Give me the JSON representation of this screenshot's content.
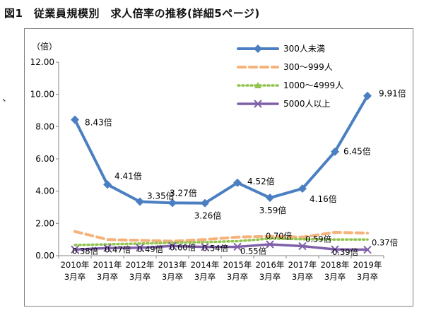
{
  "title": "図1　従業員規模別　求人倍率の推移(詳細5ページ)",
  "stray_mark": "、",
  "chart_data": {
    "type": "line",
    "title": "図1　従業員規模別　求人倍率の推移(詳細5ページ)",
    "ylabel": "（倍）",
    "xlabel": "",
    "ylim": [
      0,
      12
    ],
    "yticks": [
      "0.00",
      "2.00",
      "4.00",
      "6.00",
      "8.00",
      "10.00",
      "12.00"
    ],
    "grid": false,
    "legend_position": "top-right",
    "categories": [
      [
        "2010年",
        "3月卒"
      ],
      [
        "2011年",
        "3月卒"
      ],
      [
        "2012年",
        "3月卒"
      ],
      [
        "2013年",
        "3月卒"
      ],
      [
        "2014年",
        "3月卒"
      ],
      [
        "2015年",
        "3月卒"
      ],
      [
        "2016年",
        "3月卒"
      ],
      [
        "2017年",
        "3月卒"
      ],
      [
        "2018年",
        "3月卒"
      ],
      [
        "2019年",
        "3月卒"
      ]
    ],
    "series": [
      {
        "name": "300人未満",
        "color": "#4a7fc1",
        "style": "solid",
        "marker": "diamond",
        "values": [
          8.43,
          4.41,
          3.35,
          3.27,
          3.26,
          4.52,
          3.59,
          4.16,
          6.45,
          9.91
        ],
        "labels": [
          "8.43倍",
          "4.41倍",
          "3.35倍",
          "3.27倍",
          "3.26倍",
          "4.52倍",
          "3.59倍",
          "4.16倍",
          "6.45倍",
          "9.91倍"
        ]
      },
      {
        "name": "300～999人",
        "color": "#f5b27a",
        "style": "dash",
        "marker": "square",
        "values": [
          1.5,
          1.0,
          0.95,
          0.9,
          1.0,
          1.15,
          1.2,
          1.15,
          1.45,
          1.4
        ],
        "labels": []
      },
      {
        "name": "1000～4999人",
        "color": "#92c44f",
        "style": "dot",
        "marker": "triangle",
        "values": [
          0.66,
          0.7,
          0.75,
          0.8,
          0.84,
          0.9,
          1.06,
          1.02,
          1.0,
          1.0
        ],
        "labels": []
      },
      {
        "name": "5000人以上",
        "color": "#7f60a8",
        "style": "solid",
        "marker": "x",
        "values": [
          0.38,
          0.47,
          0.49,
          0.6,
          0.54,
          0.55,
          0.7,
          0.59,
          0.39,
          0.37
        ],
        "labels": [
          "0.38倍",
          "0.47倍",
          "0.49倍",
          "0.60倍",
          "0.54倍",
          "0.55倍",
          "0.70倍",
          "0.59倍",
          "0.39倍",
          "0.37倍"
        ]
      }
    ]
  }
}
